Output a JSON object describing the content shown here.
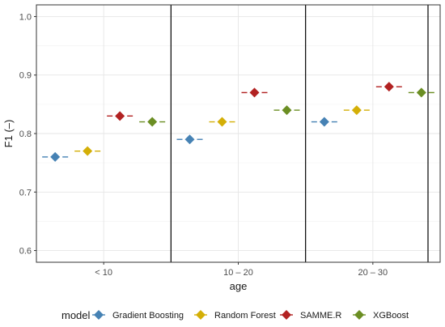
{
  "chart_data": {
    "type": "scatter",
    "xlabel": "age",
    "ylabel": "F1 (–)",
    "categories": [
      "< 10",
      "10 – 20",
      "20 – 30"
    ],
    "ylim": [
      0.58,
      1.02
    ],
    "yticks": [
      0.6,
      0.7,
      0.8,
      0.9,
      1.0
    ],
    "ytick_labels": [
      "0.6",
      "0.7",
      "0.8",
      "0.9",
      "1.0"
    ],
    "grid": true,
    "legend_placement": "bottom",
    "legend_title": "model",
    "series": [
      {
        "name": "Gradient Boosting",
        "color": "#4682B4",
        "values": [
          0.76,
          0.79,
          0.82
        ]
      },
      {
        "name": "Random Forest",
        "color": "#D4AF07",
        "values": [
          0.77,
          0.82,
          0.84
        ]
      },
      {
        "name": "SAMME.R",
        "color": "#B22222",
        "values": [
          0.83,
          0.87,
          0.88
        ]
      },
      {
        "name": "XGBoost",
        "color": "#6B8E23",
        "values": [
          0.82,
          0.84,
          0.87
        ]
      }
    ]
  }
}
